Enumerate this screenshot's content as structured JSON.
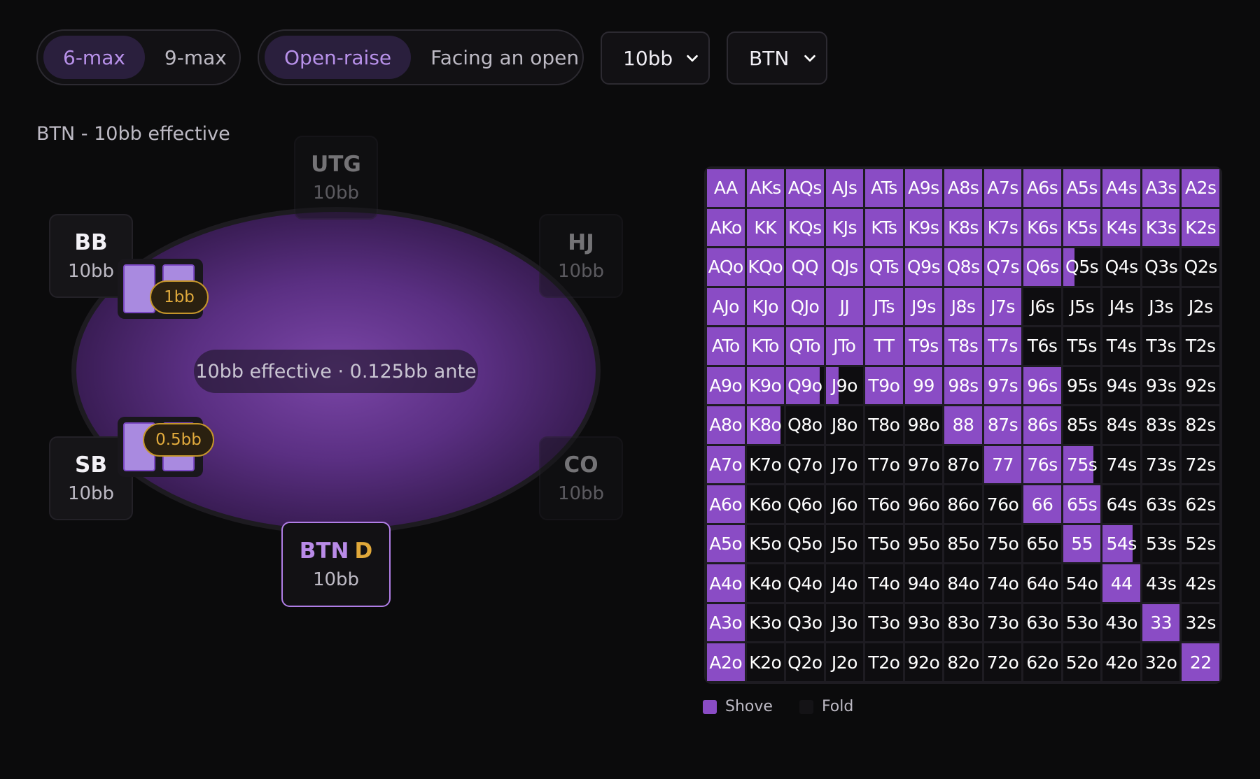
{
  "controls": {
    "table_size": {
      "options": [
        "6-max",
        "9-max"
      ],
      "selected": "6-max"
    },
    "scenario": {
      "options": [
        "Open-raise",
        "Facing an open"
      ],
      "selected": "Open-raise"
    },
    "stack_select": {
      "value": "10bb"
    },
    "position_select": {
      "value": "BTN"
    }
  },
  "context_label": "BTN - 10bb effective",
  "table": {
    "pot_text": "10bb effective · 0.125bb ante",
    "seats": {
      "utg": {
        "pos": "UTG",
        "stack": "10bb"
      },
      "hj": {
        "pos": "HJ",
        "stack": "10bb"
      },
      "co": {
        "pos": "CO",
        "stack": "10bb"
      },
      "btn": {
        "pos": "BTN",
        "dealer": "D",
        "stack": "10bb"
      },
      "sb": {
        "pos": "SB",
        "stack": "10bb",
        "blind": "0.5bb"
      },
      "bb": {
        "pos": "BB",
        "stack": "10bb",
        "blind": "1bb"
      }
    }
  },
  "range": {
    "colors": {
      "shove": "#8a4cc5",
      "fold": "#0e0d10"
    },
    "rows": [
      [
        "AA",
        "AKs",
        "AQs",
        "AJs",
        "ATs",
        "A9s",
        "A8s",
        "A7s",
        "A6s",
        "A5s",
        "A4s",
        "A3s",
        "A2s"
      ],
      [
        "AKo",
        "KK",
        "KQs",
        "KJs",
        "KTs",
        "K9s",
        "K8s",
        "K7s",
        "K6s",
        "K5s",
        "K4s",
        "K3s",
        "K2s"
      ],
      [
        "AQo",
        "KQo",
        "QQ",
        "QJs",
        "QTs",
        "Q9s",
        "Q8s",
        "Q7s",
        "Q6s",
        "Q5s",
        "Q4s",
        "Q3s",
        "Q2s"
      ],
      [
        "AJo",
        "KJo",
        "QJo",
        "JJ",
        "JTs",
        "J9s",
        "J8s",
        "J7s",
        "J6s",
        "J5s",
        "J4s",
        "J3s",
        "J2s"
      ],
      [
        "ATo",
        "KTo",
        "QTo",
        "JTo",
        "TT",
        "T9s",
        "T8s",
        "T7s",
        "T6s",
        "T5s",
        "T4s",
        "T3s",
        "T2s"
      ],
      [
        "A9o",
        "K9o",
        "Q9o",
        "J9o",
        "T9o",
        "99",
        "98s",
        "97s",
        "96s",
        "95s",
        "94s",
        "93s",
        "92s"
      ],
      [
        "A8o",
        "K8o",
        "Q8o",
        "J8o",
        "T8o",
        "98o",
        "88",
        "87s",
        "86s",
        "85s",
        "84s",
        "83s",
        "82s"
      ],
      [
        "A7o",
        "K7o",
        "Q7o",
        "J7o",
        "T7o",
        "97o",
        "87o",
        "77",
        "76s",
        "75s",
        "74s",
        "73s",
        "72s"
      ],
      [
        "A6o",
        "K6o",
        "Q6o",
        "J6o",
        "T6o",
        "96o",
        "86o",
        "76o",
        "66",
        "65s",
        "64s",
        "63s",
        "62s"
      ],
      [
        "A5o",
        "K5o",
        "Q5o",
        "J5o",
        "T5o",
        "95o",
        "85o",
        "75o",
        "65o",
        "55",
        "54s",
        "53s",
        "52s"
      ],
      [
        "A4o",
        "K4o",
        "Q4o",
        "J4o",
        "T4o",
        "94o",
        "84o",
        "74o",
        "64o",
        "54o",
        "44",
        "43s",
        "42s"
      ],
      [
        "A3o",
        "K3o",
        "Q3o",
        "J3o",
        "T3o",
        "93o",
        "83o",
        "73o",
        "63o",
        "53o",
        "43o",
        "33",
        "32s"
      ],
      [
        "A2o",
        "K2o",
        "Q2o",
        "J2o",
        "T2o",
        "92o",
        "82o",
        "72o",
        "62o",
        "52o",
        "42o",
        "32o",
        "22"
      ]
    ],
    "shove_frequency": [
      [
        1,
        1,
        1,
        1,
        1,
        1,
        1,
        1,
        1,
        1,
        1,
        1,
        1
      ],
      [
        1,
        1,
        1,
        1,
        1,
        1,
        1,
        1,
        1,
        1,
        1,
        1,
        1
      ],
      [
        1,
        1,
        1,
        1,
        1,
        1,
        1,
        1,
        1,
        0.3,
        0,
        0,
        0
      ],
      [
        1,
        1,
        1,
        1,
        1,
        1,
        1,
        1,
        0,
        0,
        0,
        0,
        0
      ],
      [
        1,
        1,
        1,
        1,
        1,
        1,
        1,
        1,
        0,
        0,
        0,
        0,
        0
      ],
      [
        1,
        1,
        0.9,
        0.35,
        1,
        1,
        1,
        1,
        1,
        0,
        0,
        0,
        0
      ],
      [
        1,
        0.9,
        0,
        0,
        0,
        0,
        1,
        1,
        1,
        0,
        0,
        0,
        0
      ],
      [
        1,
        0,
        0,
        0,
        0,
        0,
        0,
        1,
        1,
        0.8,
        0,
        0,
        0
      ],
      [
        1,
        0,
        0,
        0,
        0,
        0,
        0,
        0,
        1,
        1,
        0,
        0,
        0
      ],
      [
        1,
        0,
        0,
        0,
        0,
        0,
        0,
        0,
        0,
        1,
        0.8,
        0,
        0
      ],
      [
        1,
        0,
        0,
        0,
        0,
        0,
        0,
        0,
        0,
        0,
        1,
        0,
        0
      ],
      [
        1,
        0,
        0,
        0,
        0,
        0,
        0,
        0,
        0,
        0,
        0,
        1,
        0
      ],
      [
        1,
        0,
        0,
        0,
        0,
        0,
        0,
        0,
        0,
        0,
        0,
        0,
        1
      ]
    ]
  },
  "legend": [
    {
      "label": "Shove",
      "color": "#8a4cc5"
    },
    {
      "label": "Fold",
      "color": "#141316"
    }
  ]
}
